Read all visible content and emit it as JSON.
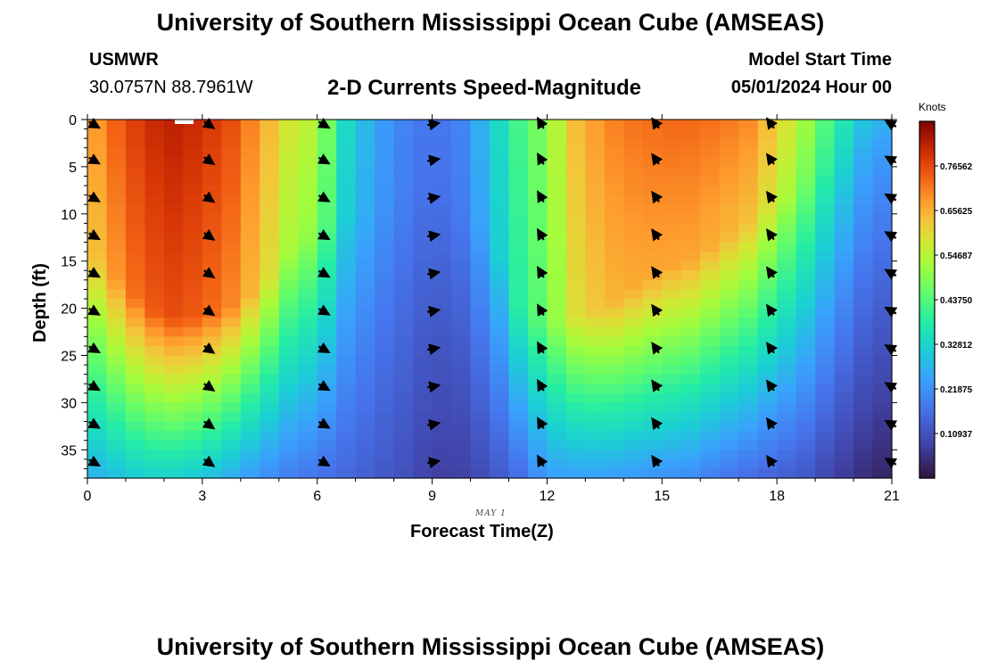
{
  "header": {
    "title": "University of Southern Mississippi Ocean Cube (AMSEAS)",
    "station": "USMWR",
    "coords": "30.0757N  88.7961W",
    "plot_title": "2-D Currents Speed-Magnitude",
    "model_label": "Model Start Time",
    "model_start": "05/01/2024 Hour 00"
  },
  "footer": {
    "title": "University of Southern Mississippi Ocean Cube (AMSEAS)"
  },
  "chart_data": {
    "type": "heatmap",
    "title": "2-D Currents Speed-Magnitude",
    "xlabel": "Forecast Time(Z)",
    "ylabel": "Depth (ft)",
    "date_note": "MAY 1",
    "xlim": [
      0,
      21
    ],
    "ylim": [
      0,
      38
    ],
    "x_ticks": [
      0,
      3,
      6,
      9,
      12,
      15,
      18,
      21
    ],
    "y_ticks": [
      0,
      5,
      10,
      15,
      20,
      25,
      30,
      35
    ],
    "colorbar": {
      "unit": "Knots",
      "min": 0.0,
      "max": 0.875,
      "ticks": [
        "0.10937",
        "0.21875",
        "0.32812",
        "0.43750",
        "0.54687",
        "0.65625",
        "0.76562"
      ],
      "tick_values": [
        0.10937,
        0.21875,
        0.32812,
        0.4375,
        0.54687,
        0.65625,
        0.76562
      ]
    },
    "speed_model": {
      "hours": [
        0,
        0.75,
        1.5,
        2.25,
        3,
        3.75,
        4.5,
        5.25,
        6,
        6.75,
        7.5,
        8.25,
        9,
        9.75,
        10.5,
        11.25,
        12,
        12.75,
        13.5,
        14.25,
        15,
        15.75,
        16.5,
        17.25,
        18,
        18.75,
        19.5,
        20.25,
        21
      ],
      "surface_speed": [
        0.66,
        0.74,
        0.8,
        0.82,
        0.8,
        0.76,
        0.68,
        0.58,
        0.54,
        0.34,
        0.25,
        0.2,
        0.17,
        0.2,
        0.3,
        0.42,
        0.5,
        0.64,
        0.7,
        0.72,
        0.73,
        0.73,
        0.72,
        0.7,
        0.62,
        0.52,
        0.4,
        0.3,
        0.26
      ],
      "bottom_speed": [
        0.26,
        0.29,
        0.32,
        0.32,
        0.3,
        0.26,
        0.22,
        0.19,
        0.17,
        0.15,
        0.13,
        0.11,
        0.08,
        0.08,
        0.11,
        0.16,
        0.24,
        0.24,
        0.24,
        0.23,
        0.22,
        0.21,
        0.18,
        0.16,
        0.14,
        0.12,
        0.08,
        0.05,
        0.03
      ],
      "bend_depth": [
        14,
        17,
        20,
        21,
        21,
        20,
        18,
        14,
        12,
        10,
        10,
        10,
        8,
        10,
        12,
        20,
        22,
        21,
        20,
        18,
        16,
        15,
        13,
        11,
        9,
        7,
        5,
        3,
        2
      ]
    },
    "vectors": {
      "hours": [
        0.15,
        3.15,
        6.15,
        9.0,
        11.85,
        14.85,
        17.85,
        21.0
      ],
      "depths": [
        0.5,
        4.3,
        8.3,
        12.3,
        16.3,
        20.3,
        24.3,
        28.3,
        32.3,
        36.3
      ],
      "direction_deg_by_column": [
        120,
        125,
        120,
        80,
        330,
        325,
        325,
        300
      ]
    }
  }
}
